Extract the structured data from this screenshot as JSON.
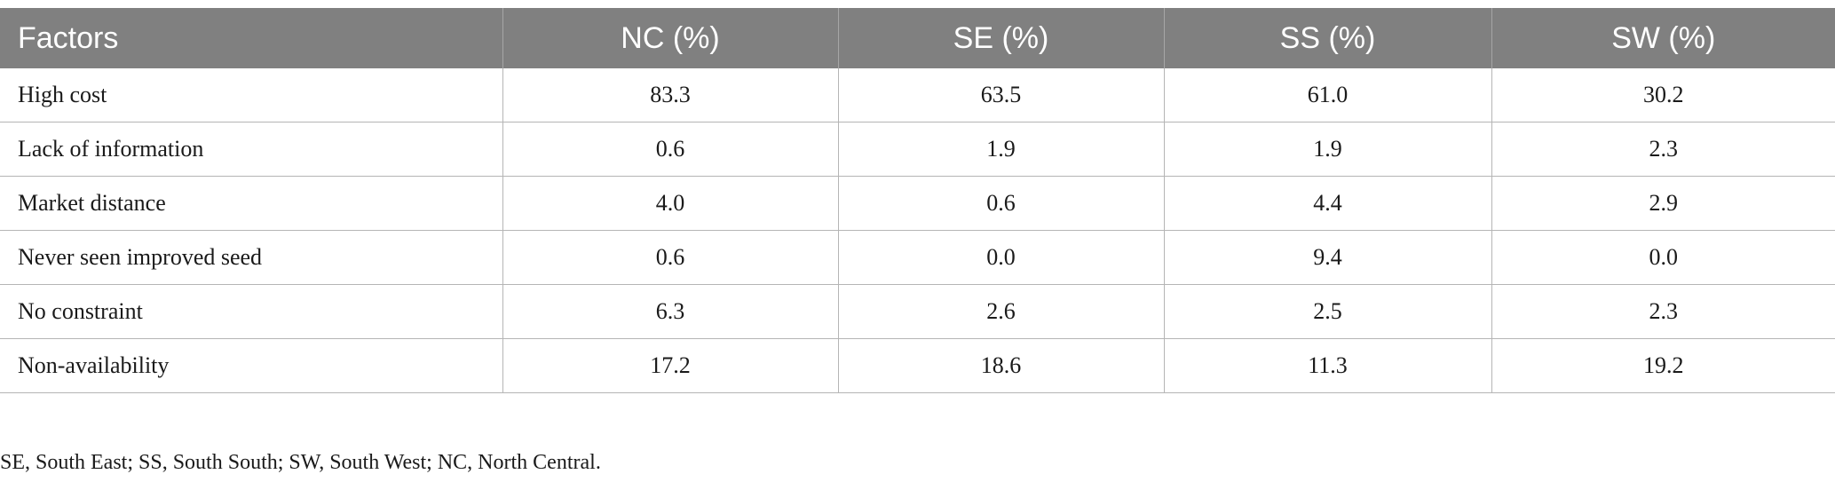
{
  "table": {
    "headers": [
      "Factors",
      "NC (%)",
      "SE (%)",
      "SS (%)",
      "SW (%)"
    ],
    "rows": [
      [
        "High cost",
        "83.3",
        "63.5",
        "61.0",
        "30.2"
      ],
      [
        "Lack of information",
        "0.6",
        "1.9",
        "1.9",
        "2.3"
      ],
      [
        "Market distance",
        "4.0",
        "0.6",
        "4.4",
        "2.9"
      ],
      [
        "Never seen improved seed",
        "0.6",
        "0.0",
        "9.4",
        "0.0"
      ],
      [
        "No constraint",
        "6.3",
        "2.6",
        "2.5",
        "2.3"
      ],
      [
        "Non-availability",
        "17.2",
        "18.6",
        "11.3",
        "19.2"
      ]
    ]
  },
  "footnote": "SE, South East; SS, South South; SW, South West; NC, North Central."
}
